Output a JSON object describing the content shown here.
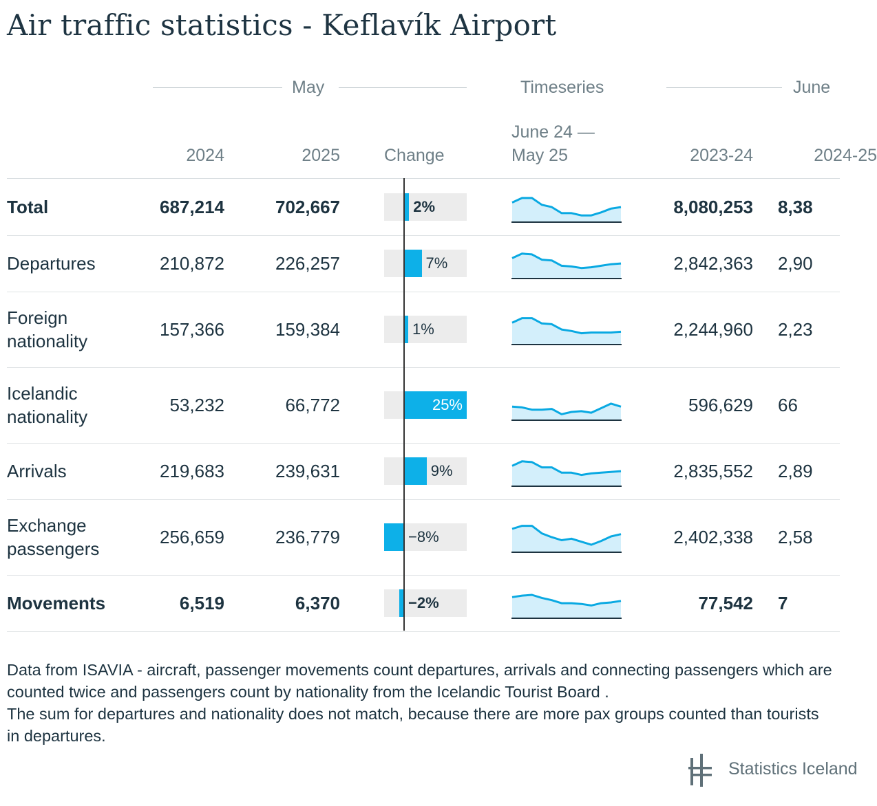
{
  "title": "Air traffic statistics - Keflavík Airport",
  "group_headers": {
    "may": "May",
    "timeseries": "Timeseries",
    "june": "June"
  },
  "column_headers": {
    "y2024": "2024",
    "y2025": "2025",
    "change": "Change",
    "timeseries_range_line1": "June 24 —",
    "timeseries_range_line2": "May 25",
    "period1": "2023-24",
    "period2": "2024-25"
  },
  "chart_data": {
    "type": "table",
    "title": "Air traffic statistics - Keflavík Airport",
    "columns": [
      "",
      "2024",
      "2025",
      "Change",
      "June 24 — May 25",
      "2023-24",
      "2024-25"
    ],
    "rows": [
      {
        "label": "Total",
        "bold": true,
        "may_2024": "687,214",
        "may_2025": "702,667",
        "change": 2,
        "change_label": "2%",
        "period1": "8,080,253",
        "period2": "8,38",
        "spark": [
          55,
          61,
          61,
          52,
          49,
          41,
          41,
          38,
          38,
          42,
          47,
          49
        ]
      },
      {
        "label": "Departures",
        "bold": false,
        "may_2024": "210,872",
        "may_2025": "226,257",
        "change": 7,
        "change_label": "7%",
        "period1": "2,842,363",
        "period2": "2,90",
        "spark": [
          56,
          62,
          61,
          54,
          53,
          46,
          45,
          43,
          44,
          46,
          48,
          49
        ]
      },
      {
        "label": "Foreign nationality",
        "bold": false,
        "may_2024": "157,366",
        "may_2025": "159,384",
        "change": 1,
        "change_label": "1%",
        "period1": "2,244,960",
        "period2": "2,23",
        "spark": [
          58,
          64,
          64,
          57,
          56,
          49,
          47,
          44,
          45,
          45,
          45,
          46
        ]
      },
      {
        "label": "Icelandic nationality",
        "bold": false,
        "may_2024": "53,232",
        "may_2025": "66,772",
        "change": 25,
        "change_label": "25%",
        "period1": "596,629",
        "period2": "66",
        "spark": [
          47,
          46,
          43,
          43,
          44,
          37,
          40,
          41,
          39,
          45,
          51,
          47
        ]
      },
      {
        "label": "Arrivals",
        "bold": false,
        "may_2024": "219,683",
        "may_2025": "239,631",
        "change": 9,
        "change_label": "9%",
        "period1": "2,835,552",
        "period2": "2,89",
        "spark": [
          56,
          62,
          61,
          54,
          54,
          47,
          47,
          44,
          46,
          47,
          48,
          49
        ]
      },
      {
        "label": "Exchange passengers",
        "bold": false,
        "may_2024": "256,659",
        "may_2025": "236,779",
        "change": -8,
        "change_label": "−8%",
        "period1": "2,402,338",
        "period2": "2,58",
        "spark": [
          60,
          64,
          64,
          54,
          49,
          45,
          47,
          43,
          39,
          44,
          50,
          53
        ]
      },
      {
        "label": "Movements",
        "bold": true,
        "may_2024": "6,519",
        "may_2025": "6,370",
        "change": -2,
        "change_label": "−2%",
        "period1": "77,542",
        "period2": "7",
        "spark": [
          57,
          59,
          60,
          56,
          53,
          49,
          49,
          48,
          46,
          49,
          50,
          52
        ]
      }
    ]
  },
  "footnote": {
    "line1": "Data from ISAVIA - aircraft, passenger movements count departures, arrivals and connecting passengers which are counted twice and passengers count by nationality from the Icelandic Tourist Board .",
    "line2": "The sum for departures and nationality does not match, because there are more pax groups counted than tourists in departures."
  },
  "logo": {
    "name": "Statistics Iceland",
    "icon": "statistics-iceland-logo-icon"
  },
  "colors": {
    "bar": "#0db0e8",
    "spark_line": "#0aa9e2",
    "spark_fill": "#d3effb",
    "track": "#ececec",
    "text": "#1d3340",
    "muted": "#6e7f87"
  }
}
